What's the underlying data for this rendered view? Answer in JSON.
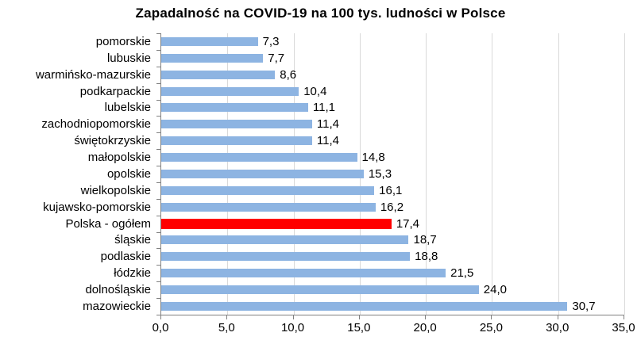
{
  "chart_data": {
    "type": "bar",
    "orientation": "horizontal",
    "title": "Zapadalność na COVID-19 na 100 tys. ludności w Polsce",
    "categories": [
      "pomorskie",
      "lubuskie",
      "warmińsko-mazurskie",
      "podkarpackie",
      "lubelskie",
      "zachodniopomorskie",
      "świętokrzyskie",
      "małopolskie",
      "opolskie",
      "wielkopolskie",
      "kujawsko-pomorskie",
      "Polska - ogółem",
      "śląskie",
      "podlaskie",
      "łódzkie",
      "dolnośląskie",
      "mazowieckie"
    ],
    "values": [
      7.3,
      7.7,
      8.6,
      10.4,
      11.1,
      11.4,
      11.4,
      14.8,
      15.3,
      16.1,
      16.2,
      17.4,
      18.7,
      18.8,
      21.5,
      24.0,
      30.7
    ],
    "value_labels": [
      "7,3",
      "7,7",
      "8,6",
      "10,4",
      "11,1",
      "11,4",
      "11,4",
      "14,8",
      "15,3",
      "16,1",
      "16,2",
      "17,4",
      "18,7",
      "18,8",
      "21,5",
      "24,0",
      "30,7"
    ],
    "highlight_category": "Polska - ogółem",
    "highlight_index": 11,
    "bar_color": "#8db4e2",
    "highlight_color": "#ff0000",
    "gridline_color": "#d9d9d9",
    "axis_color": "#808080",
    "xlim": [
      0,
      35
    ],
    "x_tick_step": 5,
    "x_tick_labels": [
      "0,0",
      "5,0",
      "10,0",
      "15,0",
      "20,0",
      "25,0",
      "30,0",
      "35,0"
    ],
    "grid": "vertical-only",
    "legend": "none",
    "xlabel": "",
    "ylabel": ""
  }
}
